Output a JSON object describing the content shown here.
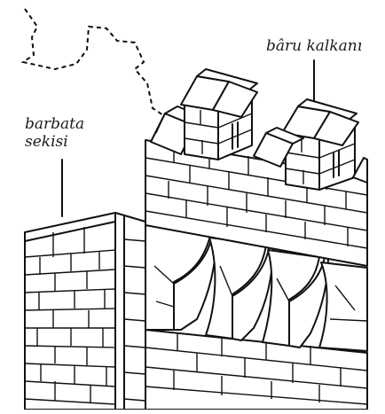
{
  "labels": {
    "baru_kalkani": "bâru kalkanı",
    "barbata_sekisi_line1": "barbata",
    "barbata_sekisi_line2": "sekisi"
  },
  "colors": {
    "ink": "#111111",
    "paper": "#ffffff"
  }
}
